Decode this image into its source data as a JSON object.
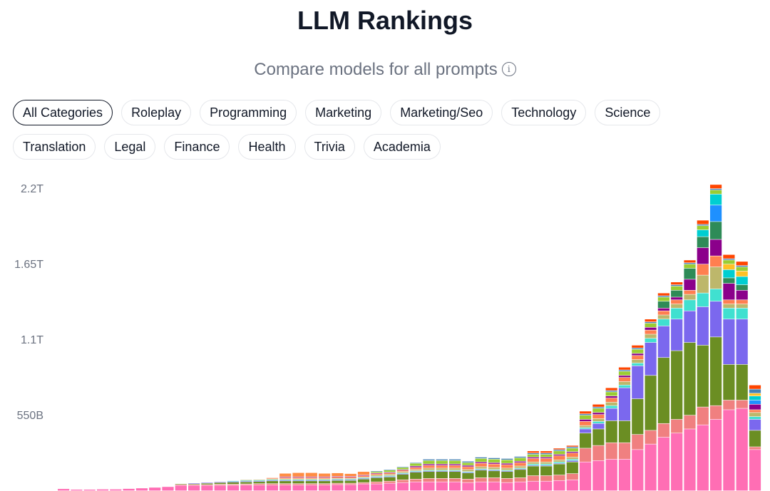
{
  "header": {
    "title": "LLM Rankings",
    "subtitle": "Compare models for all prompts",
    "info_icon": "info-icon"
  },
  "filters": {
    "selected": "All Categories",
    "rows": [
      [
        "All Categories",
        "Roleplay",
        "Programming",
        "Marketing",
        "Marketing/Seo",
        "Technology",
        "Science"
      ],
      [
        "Translation",
        "Legal",
        "Finance",
        "Health",
        "Trivia",
        "Academia"
      ]
    ]
  },
  "chart_data": {
    "type": "bar",
    "stacked": true,
    "y_ticks": [
      "2.2T",
      "1.65T",
      "1.1T",
      "550B"
    ],
    "y_tick_values": [
      2200,
      1650,
      1100,
      550
    ],
    "ylim": [
      0,
      2200
    ],
    "unit": "B tokens",
    "colors": [
      "#ff6eb4",
      "#f08080",
      "#6b8e23",
      "#7b68ee",
      "#40e0d0",
      "#bdb76b",
      "#ff7f50",
      "#8b008b",
      "#2e8b57",
      "#1e90ff",
      "#00ced1",
      "#ffc125",
      "#9acd32",
      "#4682b4",
      "#ff4500",
      "#ff8c42"
    ],
    "bars": [
      [
        15
      ],
      [
        10
      ],
      [
        10
      ],
      [
        12
      ],
      [
        12
      ],
      [
        16
      ],
      [
        20
      ],
      [
        25
      ],
      [
        30
      ],
      [
        40,
        5,
        5
      ],
      [
        40,
        5,
        5,
        5
      ],
      [
        40,
        5,
        10,
        5
      ],
      [
        40,
        8,
        12,
        5
      ],
      [
        40,
        8,
        15,
        5,
        5
      ],
      [
        42,
        8,
        15,
        5,
        5,
        5
      ],
      [
        42,
        10,
        15,
        5,
        5,
        5
      ],
      [
        42,
        10,
        20,
        5,
        5,
        5,
        8
      ],
      [
        42,
        10,
        20,
        5,
        5,
        5,
        10,
        5,
        0,
        0,
        0,
        0,
        0,
        0,
        0,
        25
      ],
      [
        42,
        10,
        20,
        5,
        5,
        5,
        10,
        5,
        0,
        0,
        0,
        0,
        0,
        0,
        0,
        30
      ],
      [
        42,
        10,
        20,
        5,
        5,
        5,
        10,
        5,
        0,
        0,
        0,
        0,
        0,
        0,
        0,
        30
      ],
      [
        42,
        10,
        20,
        5,
        5,
        5,
        10,
        5,
        0,
        0,
        0,
        0,
        0,
        0,
        0,
        25
      ],
      [
        45,
        10,
        20,
        5,
        5,
        5,
        10,
        5,
        0,
        0,
        0,
        0,
        0,
        0,
        0,
        25
      ],
      [
        45,
        10,
        20,
        5,
        5,
        5,
        10,
        5,
        0,
        0,
        0,
        0,
        0,
        0,
        0,
        20
      ],
      [
        50,
        10,
        25,
        5,
        5,
        5,
        10,
        5,
        0,
        0,
        0,
        0,
        0,
        0,
        0,
        25
      ],
      [
        50,
        15,
        30,
        5,
        5,
        10,
        10,
        5,
        0,
        0,
        0,
        0,
        10,
        5
      ],
      [
        55,
        15,
        30,
        5,
        5,
        10,
        10,
        5,
        0,
        0,
        0,
        0,
        15,
        5
      ],
      [
        60,
        20,
        40,
        5,
        5,
        10,
        10,
        5,
        0,
        0,
        0,
        0,
        15,
        5
      ],
      [
        65,
        20,
        50,
        5,
        5,
        10,
        15,
        10,
        0,
        0,
        0,
        0,
        20,
        5
      ],
      [
        65,
        25,
        50,
        5,
        5,
        15,
        20,
        10,
        0,
        0,
        0,
        0,
        25,
        10
      ],
      [
        65,
        25,
        50,
        5,
        5,
        15,
        20,
        10,
        0,
        0,
        0,
        0,
        25,
        10
      ],
      [
        65,
        25,
        50,
        5,
        5,
        15,
        20,
        10,
        0,
        0,
        0,
        0,
        25,
        10
      ],
      [
        60,
        25,
        45,
        5,
        5,
        15,
        20,
        10,
        0,
        0,
        0,
        0,
        20,
        10
      ],
      [
        65,
        30,
        55,
        5,
        5,
        15,
        25,
        10,
        0,
        0,
        0,
        0,
        25,
        10
      ],
      [
        65,
        30,
        50,
        5,
        5,
        15,
        25,
        10,
        0,
        0,
        0,
        0,
        25,
        10
      ],
      [
        60,
        30,
        50,
        5,
        5,
        15,
        25,
        10,
        0,
        0,
        0,
        0,
        25,
        10
      ],
      [
        65,
        30,
        60,
        5,
        5,
        15,
        25,
        10,
        0,
        0,
        0,
        0,
        25,
        10
      ],
      [
        70,
        40,
        70,
        5,
        10,
        15,
        25,
        10,
        0,
        0,
        0,
        0,
        20,
        10,
        15
      ],
      [
        70,
        40,
        70,
        5,
        10,
        15,
        25,
        10,
        0,
        0,
        0,
        0,
        20,
        10,
        15
      ],
      [
        75,
        40,
        80,
        5,
        10,
        15,
        30,
        10,
        0,
        0,
        0,
        0,
        25,
        10,
        10
      ],
      [
        80,
        45,
        85,
        10,
        10,
        15,
        30,
        10,
        0,
        0,
        0,
        0,
        25,
        10,
        10
      ],
      [
        210,
        100,
        110,
        30,
        10,
        15,
        30,
        15,
        0,
        0,
        0,
        0,
        30,
        10,
        20
      ],
      [
        220,
        110,
        120,
        40,
        15,
        20,
        30,
        15,
        0,
        0,
        0,
        0,
        30,
        10,
        20
      ],
      [
        230,
        120,
        160,
        90,
        20,
        25,
        30,
        15,
        0,
        0,
        0,
        0,
        30,
        10,
        20
      ],
      [
        230,
        120,
        160,
        240,
        20,
        25,
        30,
        15,
        0,
        0,
        0,
        0,
        30,
        10,
        20
      ],
      [
        300,
        110,
        260,
        240,
        20,
        25,
        30,
        15,
        0,
        0,
        0,
        0,
        30,
        10,
        20
      ],
      [
        340,
        100,
        400,
        240,
        30,
        30,
        30,
        20,
        0,
        0,
        0,
        0,
        30,
        10,
        20
      ],
      [
        390,
        100,
        480,
        230,
        50,
        30,
        30,
        20,
        50,
        0,
        0,
        0,
        30,
        10,
        20
      ],
      [
        420,
        100,
        500,
        230,
        80,
        30,
        30,
        20,
        50,
        0,
        0,
        0,
        30,
        10,
        20
      ],
      [
        450,
        100,
        530,
        230,
        80,
        40,
        30,
        80,
        80,
        0,
        0,
        0,
        30,
        10,
        20
      ],
      [
        480,
        130,
        450,
        280,
        100,
        130,
        80,
        120,
        80,
        0,
        50,
        0,
        30,
        10,
        30
      ],
      [
        520,
        100,
        500,
        260,
        90,
        160,
        80,
        120,
        130,
        120,
        80,
        0,
        30,
        10,
        30
      ],
      [
        590,
        70,
        260,
        330,
        80,
        30,
        30,
        120,
        40,
        0,
        60,
        40,
        30,
        10,
        30
      ],
      [
        600,
        60,
        260,
        330,
        80,
        30,
        30,
        70,
        40,
        0,
        60,
        40,
        30,
        10,
        30
      ],
      [
        300,
        20,
        120,
        80,
        20,
        30,
        20,
        40,
        0,
        30,
        30,
        20,
        0,
        30,
        30
      ]
    ]
  }
}
